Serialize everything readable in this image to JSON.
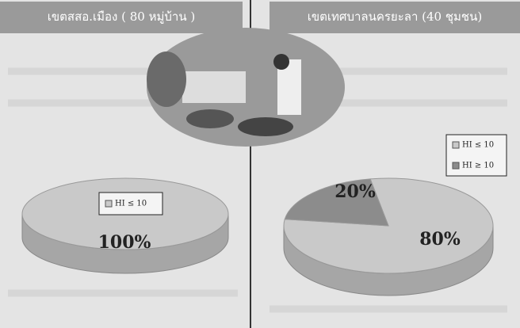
{
  "chart_data": [
    {
      "type": "pie",
      "title": "เขตสสอ.เมือง ( 80 หมู่บ้าน )",
      "categories": [
        "HI ≤ 10"
      ],
      "values": [
        100
      ],
      "value_labels": [
        "100%"
      ],
      "colors": [
        "#c9c9c9"
      ]
    },
    {
      "type": "pie",
      "title": "เขตเทศบาลนครยะลา (40 ชุมชน)",
      "categories": [
        "HI ≤ 10",
        "HI ≥ 10"
      ],
      "values": [
        80,
        20
      ],
      "value_labels": [
        "80%",
        "20%"
      ],
      "colors": [
        "#c9c9c9",
        "#8c8c8c"
      ]
    }
  ]
}
